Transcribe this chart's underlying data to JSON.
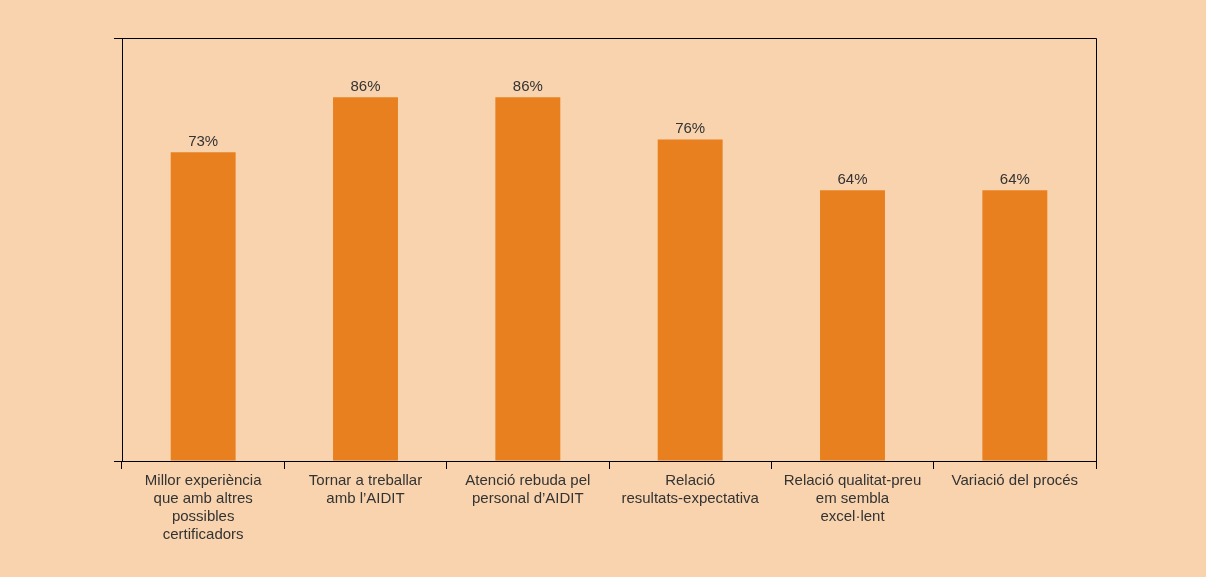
{
  "chart_data": {
    "type": "bar",
    "categories": [
      "Millor experiència que amb altres possibles certificadors",
      "Tornar a treballar amb l’AIDIT",
      "Atenció rebuda pel personal d’AIDIT",
      "Relació resultats-expectativa",
      "Relació qualitat-preu em sembla excel·lent",
      "Variació del procés"
    ],
    "values": [
      73,
      86,
      86,
      76,
      64,
      64
    ],
    "value_labels": [
      "73%",
      "86%",
      "86%",
      "76%",
      "64%",
      "64%"
    ],
    "color": "#e8801f",
    "ylim": [
      0,
      100
    ],
    "yticks": [
      {
        "value": 0,
        "label": null
      },
      {
        "value": 100,
        "label": null
      }
    ],
    "tick_labels": "x",
    "grid": false,
    "legend": false
  }
}
